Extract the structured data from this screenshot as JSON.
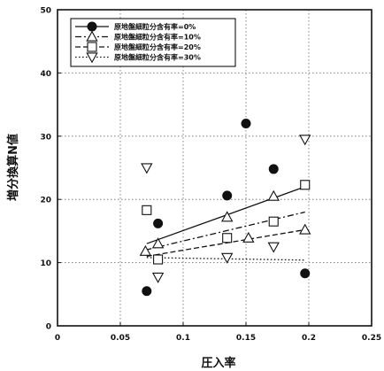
{
  "chart_data": {
    "type": "scatter",
    "xlabel": "圧入率",
    "ylabel": "増分換算N値",
    "xlim": [
      0,
      0.25
    ],
    "ylim": [
      0,
      50
    ],
    "x_ticks": [
      "0",
      "0.05",
      "0.1",
      "0.15",
      "0.2",
      "0.25"
    ],
    "y_ticks": [
      "0",
      "10",
      "20",
      "30",
      "40",
      "50"
    ],
    "x_tick_values": [
      0,
      0.05,
      0.1,
      0.15,
      0.2,
      0.25
    ],
    "y_tick_values": [
      0,
      10,
      20,
      30,
      40,
      50
    ],
    "grid": true,
    "legend_position": "top-left",
    "series": [
      {
        "name": "原地盤細粒分含有率=0%",
        "marker": "circle-filled",
        "line": "solid",
        "points": [
          [
            0.071,
            5.5
          ],
          [
            0.08,
            16.2
          ],
          [
            0.135,
            20.6
          ],
          [
            0.15,
            32.0
          ],
          [
            0.172,
            24.8
          ],
          [
            0.197,
            8.3
          ]
        ],
        "trend": [
          [
            0.071,
            13.0
          ],
          [
            0.197,
            22.0
          ]
        ]
      },
      {
        "name": "原地盤細粒分含有率=10%",
        "marker": "triangle-up",
        "line": "dash-dot",
        "points": [
          [
            0.07,
            11.8
          ],
          [
            0.08,
            13.0
          ],
          [
            0.135,
            17.2
          ],
          [
            0.152,
            13.9
          ],
          [
            0.172,
            20.5
          ],
          [
            0.197,
            15.2
          ]
        ],
        "trend": [
          [
            0.07,
            12.0
          ],
          [
            0.197,
            18.0
          ]
        ]
      },
      {
        "name": "原地盤細粒分含有率=20%",
        "marker": "square",
        "line": "dashed",
        "points": [
          [
            0.071,
            18.3
          ],
          [
            0.08,
            10.5
          ],
          [
            0.135,
            13.9
          ],
          [
            0.172,
            16.5
          ],
          [
            0.197,
            22.3
          ]
        ],
        "trend": [
          [
            0.071,
            11.0
          ],
          [
            0.197,
            15.2
          ]
        ]
      },
      {
        "name": "原地盤細粒分含有率=30%",
        "marker": "triangle-down",
        "line": "dotted",
        "points": [
          [
            0.071,
            25.0
          ],
          [
            0.08,
            7.7
          ],
          [
            0.135,
            10.8
          ],
          [
            0.172,
            12.5
          ],
          [
            0.197,
            29.5
          ]
        ],
        "trend": [
          [
            0.071,
            10.8
          ],
          [
            0.197,
            10.4
          ]
        ]
      }
    ]
  }
}
